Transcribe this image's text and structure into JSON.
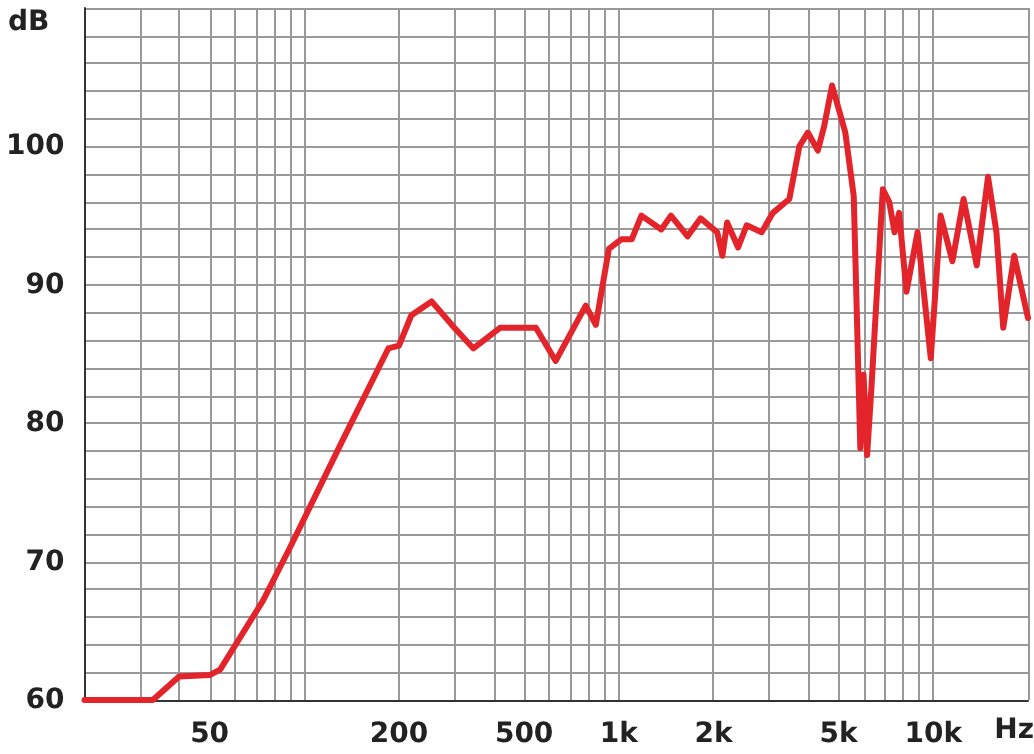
{
  "chart_data": {
    "type": "line",
    "xlabel": "Hz",
    "ylabel": "dB",
    "log": "x",
    "grid": true,
    "marker": "none",
    "line_style": "solid",
    "xlim": [
      20,
      20000
    ],
    "ylim": [
      60,
      110
    ],
    "xticks": [
      {
        "value": 20,
        "label": null
      },
      {
        "value": 30,
        "label": null
      },
      {
        "value": 40,
        "label": null
      },
      50,
      {
        "value": 60,
        "label": null
      },
      {
        "value": 70,
        "label": null
      },
      {
        "value": 80,
        "label": null
      },
      {
        "value": 90,
        "label": null
      },
      {
        "value": 100,
        "label": null
      },
      200,
      {
        "value": 300,
        "label": null
      },
      {
        "value": 400,
        "label": null
      },
      500,
      {
        "value": 600,
        "label": null
      },
      {
        "value": 700,
        "label": null
      },
      {
        "value": 800,
        "label": null
      },
      {
        "value": 900,
        "label": null
      },
      {
        "value": 1000,
        "label": "1k"
      },
      {
        "value": 2000,
        "label": "2k"
      },
      {
        "value": 3000,
        "label": null
      },
      {
        "value": 4000,
        "label": null
      },
      {
        "value": 5000,
        "label": "5k"
      },
      {
        "value": 6000,
        "label": null
      },
      {
        "value": 7000,
        "label": null
      },
      {
        "value": 8000,
        "label": null
      },
      {
        "value": 9000,
        "label": null
      },
      {
        "value": 10000,
        "label": "10k"
      },
      {
        "value": 20000,
        "label": null
      }
    ],
    "yticks": [
      60,
      {
        "value": 62,
        "label": null
      },
      {
        "value": 64,
        "label": null
      },
      {
        "value": 66,
        "label": null
      },
      {
        "value": 68,
        "label": null
      },
      70,
      {
        "value": 72,
        "label": null
      },
      {
        "value": 74,
        "label": null
      },
      {
        "value": 76,
        "label": null
      },
      {
        "value": 78,
        "label": null
      },
      80,
      {
        "value": 82,
        "label": null
      },
      {
        "value": 84,
        "label": null
      },
      {
        "value": 86,
        "label": null
      },
      {
        "value": 88,
        "label": null
      },
      90,
      {
        "value": 92,
        "label": null
      },
      {
        "value": 94,
        "label": null
      },
      {
        "value": 96,
        "label": null
      },
      {
        "value": 98,
        "label": null
      },
      100,
      {
        "value": 102,
        "label": null
      },
      {
        "value": 104,
        "label": null
      },
      {
        "value": 106,
        "label": null
      },
      {
        "value": 108,
        "label": null
      },
      {
        "value": 110,
        "label": null
      }
    ],
    "x": [
      20,
      33,
      40,
      50,
      54,
      74,
      90,
      132,
      185,
      200,
      219,
      254,
      300,
      345,
      420,
      545,
      630,
      785,
      845,
      930,
      1020,
      1100,
      1180,
      1365,
      1465,
      1655,
      1820,
      2055,
      2135,
      2210,
      2395,
      2550,
      2845,
      3090,
      3485,
      3750,
      3990,
      4295,
      4500,
      4765,
      5250,
      5585,
      5860,
      6000,
      6160,
      6365,
      6910,
      7240,
      7530,
      7785,
      8215,
      8910,
      9815,
      10550,
      11500,
      12480,
      13740,
      14925,
      15875,
      16685,
      18075,
      20000
    ],
    "series": [
      {
        "color": "#e3242b",
        "values": [
          60,
          60,
          61.7,
          61.8,
          62.2,
          67.2,
          71,
          78.7,
          85.4,
          85.6,
          87.8,
          88.8,
          86.9,
          85.4,
          86.9,
          86.9,
          84.5,
          88.5,
          87.1,
          92.6,
          93.3,
          93.3,
          95,
          94,
          95,
          93.5,
          94.8,
          93.8,
          92.1,
          94.5,
          92.7,
          94.3,
          93.8,
          95.2,
          96.2,
          100,
          101,
          99.7,
          101.5,
          104.4,
          101,
          96.4,
          78.2,
          83.5,
          77.7,
          82.8,
          96.9,
          96,
          93.8,
          95.2,
          89.5,
          93.8,
          84.7,
          95,
          91.7,
          96.2,
          91.4,
          97.8,
          93.8,
          86.9,
          92.1,
          87.6
        ]
      }
    ]
  }
}
